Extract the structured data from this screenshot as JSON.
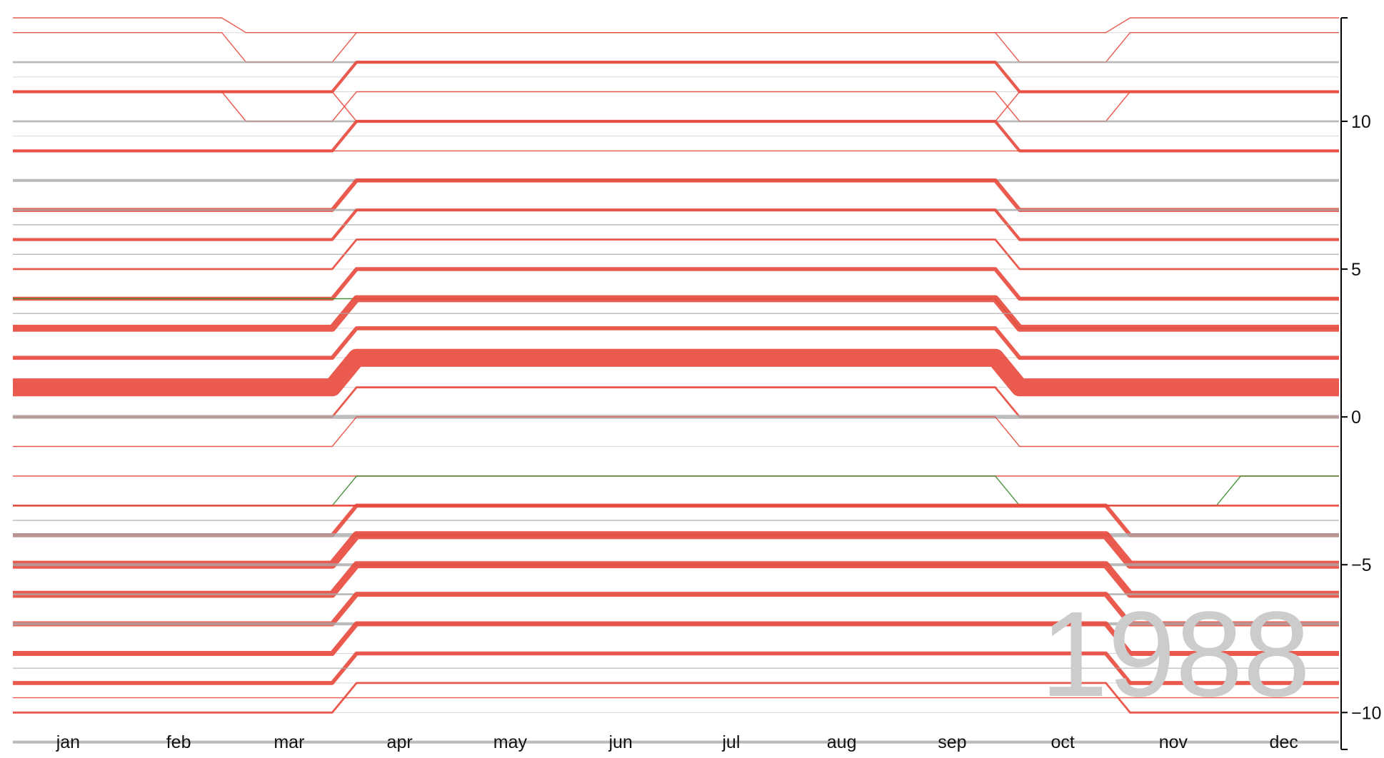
{
  "chart_data": {
    "type": "line",
    "title": "",
    "xlabel": "",
    "ylabel": "",
    "year_label": "1988",
    "x_categories": [
      "jan",
      "feb",
      "mar",
      "apr",
      "may",
      "jun",
      "jul",
      "aug",
      "sep",
      "oct",
      "nov",
      "dec"
    ],
    "y_ticks": [
      10,
      5,
      0,
      -5,
      -10
    ],
    "y_tick_labels": [
      "10",
      "5",
      "0",
      "−5",
      "−10"
    ],
    "ylim": [
      -11.2,
      13.5
    ],
    "grid": false,
    "legend": "none",
    "colors": {
      "dst": "#e8483b",
      "std": "#aaaaaa",
      "green": "#3a8a2e"
    },
    "offsets": [
      13,
      12,
      11.5,
      11,
      10,
      9.5,
      9,
      8,
      7,
      6.5,
      6,
      5.5,
      5,
      4,
      3.5,
      3,
      2,
      1,
      0,
      -1,
      -2,
      -3,
      -3.5,
      -4,
      -5,
      -6,
      -7,
      -8,
      -9,
      -10,
      -11
    ],
    "series": [
      {
        "values": [
          13.5,
          13.5,
          13,
          13,
          13,
          13,
          13,
          13,
          13,
          13,
          13.5,
          13.5
        ],
        "color": "dst",
        "weight": 1
      },
      {
        "values": [
          13,
          13,
          12,
          13,
          13,
          13,
          13,
          13,
          13,
          12,
          13,
          13
        ],
        "color": "dst",
        "weight": 1
      },
      {
        "values": [
          12,
          12,
          12,
          12,
          12,
          12,
          12,
          12,
          12,
          12,
          12,
          12
        ],
        "color": "std",
        "weight": 2
      },
      {
        "values": [
          11,
          11,
          11,
          12,
          12,
          12,
          12,
          12,
          12,
          11,
          11,
          11
        ],
        "color": "dst",
        "weight": 3
      },
      {
        "values": [
          11,
          11,
          10,
          11,
          11,
          11,
          11,
          11,
          11,
          10,
          11,
          11
        ],
        "color": "dst",
        "weight": 1
      },
      {
        "values": [
          11,
          11,
          11,
          10,
          10,
          10,
          10,
          10,
          10,
          11,
          11,
          11
        ],
        "color": "dst",
        "weight": 1
      },
      {
        "values": [
          10,
          10,
          10,
          10,
          10,
          10,
          10,
          10,
          10,
          10,
          10,
          10
        ],
        "color": "std",
        "weight": 2
      },
      {
        "values": [
          9,
          9,
          9,
          10,
          10,
          10,
          10,
          10,
          10,
          9,
          9,
          9
        ],
        "color": "dst",
        "weight": 3
      },
      {
        "values": [
          9,
          9,
          9,
          9,
          9,
          9,
          9,
          9,
          9,
          9,
          9,
          9
        ],
        "color": "dst",
        "weight": 1
      },
      {
        "values": [
          8,
          8,
          8,
          8,
          8,
          8,
          8,
          8,
          8,
          8,
          8,
          8
        ],
        "color": "std",
        "weight": 3
      },
      {
        "values": [
          7,
          7,
          7,
          8,
          8,
          8,
          8,
          8,
          8,
          7,
          7,
          7
        ],
        "color": "dst",
        "weight": 4
      },
      {
        "values": [
          7,
          7,
          7,
          7,
          7,
          7,
          7,
          7,
          7,
          7,
          7,
          7
        ],
        "color": "std",
        "weight": 2
      },
      {
        "values": [
          6,
          6,
          6,
          7,
          7,
          7,
          7,
          7,
          7,
          6,
          6,
          6
        ],
        "color": "dst",
        "weight": 3
      },
      {
        "values": [
          6.5,
          6.5,
          6.5,
          6.5,
          6.5,
          6.5,
          6.5,
          6.5,
          6.5,
          6.5,
          6.5,
          6.5
        ],
        "color": "std",
        "weight": 1
      },
      {
        "values": [
          5,
          5,
          5,
          6,
          6,
          6,
          6,
          6,
          6,
          5,
          5,
          5
        ],
        "color": "dst",
        "weight": 2
      },
      {
        "values": [
          5.5,
          5.5,
          5.5,
          5.5,
          5.5,
          5.5,
          5.5,
          5.5,
          5.5,
          5.5,
          5.5,
          5.5
        ],
        "color": "std",
        "weight": 1
      },
      {
        "values": [
          4,
          4,
          4,
          5,
          5,
          5,
          5,
          5,
          5,
          4,
          4,
          4
        ],
        "color": "dst",
        "weight": 4
      },
      {
        "values": [
          4,
          4,
          4,
          4,
          4,
          4,
          4,
          4,
          4,
          3,
          3,
          3
        ],
        "color": "green",
        "weight": 1
      },
      {
        "values": [
          3,
          3,
          3,
          4,
          4,
          4,
          4,
          4,
          4,
          3,
          3,
          3
        ],
        "color": "dst",
        "weight": 7
      },
      {
        "values": [
          3.5,
          3.5,
          3.5,
          3.5,
          3.5,
          3.5,
          3.5,
          3.5,
          3.5,
          3.5,
          3.5,
          3.5
        ],
        "color": "std",
        "weight": 1
      },
      {
        "values": [
          2,
          2,
          2,
          3,
          3,
          3,
          3,
          3,
          3,
          2,
          2,
          2
        ],
        "color": "dst",
        "weight": 4
      },
      {
        "values": [
          1,
          1,
          1,
          2,
          2,
          2,
          2,
          2,
          2,
          1,
          1,
          1
        ],
        "color": "dst",
        "weight": 18
      },
      {
        "values": [
          0,
          0,
          0,
          1,
          1,
          1,
          1,
          1,
          1,
          0,
          0,
          0
        ],
        "color": "dst",
        "weight": 2
      },
      {
        "values": [
          0,
          0,
          0,
          0,
          0,
          0,
          0,
          0,
          0,
          0,
          0,
          0
        ],
        "color": "std",
        "weight": 4
      },
      {
        "values": [
          -1,
          -1,
          -1,
          0,
          0,
          0,
          0,
          0,
          0,
          -1,
          -1,
          -1
        ],
        "color": "dst",
        "weight": 1
      },
      {
        "values": [
          -2,
          -2,
          -2,
          -2,
          -2,
          -2,
          -2,
          -2,
          -2,
          -2,
          -2,
          -2
        ],
        "color": "dst",
        "weight": 1
      },
      {
        "values": [
          -3,
          -3,
          -3,
          -2,
          -2,
          -2,
          -2,
          -2,
          -2,
          -3,
          -3,
          -2
        ],
        "color": "green",
        "weight": 1
      },
      {
        "values": [
          -3,
          -3,
          -3,
          -3,
          -3,
          -3,
          -3,
          -3,
          -3,
          -3,
          -3,
          -3
        ],
        "color": "dst",
        "weight": 2
      },
      {
        "values": [
          -3.5,
          -3.5,
          -3.5,
          -3.5,
          -3.5,
          -3.5,
          -3.5,
          -3.5,
          -3.5,
          -3.5,
          -3.5,
          -3.5
        ],
        "color": "std",
        "weight": 1
      },
      {
        "values": [
          -4,
          -4,
          -4,
          -3,
          -3,
          -3,
          -3,
          -3,
          -3,
          -3,
          -4,
          -4
        ],
        "color": "dst",
        "weight": 4
      },
      {
        "values": [
          -4,
          -4,
          -4,
          -4,
          -4,
          -4,
          -4,
          -4,
          -4,
          -4,
          -4,
          -4
        ],
        "color": "std",
        "weight": 4
      },
      {
        "values": [
          -5,
          -5,
          -5,
          -4,
          -4,
          -4,
          -4,
          -4,
          -4,
          -4,
          -5,
          -5
        ],
        "color": "dst",
        "weight": 8
      },
      {
        "values": [
          -5,
          -5,
          -5,
          -5,
          -5,
          -5,
          -5,
          -5,
          -5,
          -5,
          -5,
          -5
        ],
        "color": "std",
        "weight": 3
      },
      {
        "values": [
          -6,
          -6,
          -6,
          -5,
          -5,
          -5,
          -5,
          -5,
          -5,
          -5,
          -6,
          -6
        ],
        "color": "dst",
        "weight": 7
      },
      {
        "values": [
          -6,
          -6,
          -6,
          -6,
          -6,
          -6,
          -6,
          -6,
          -6,
          -6,
          -6,
          -6
        ],
        "color": "std",
        "weight": 2
      },
      {
        "values": [
          -7,
          -7,
          -7,
          -6,
          -6,
          -6,
          -6,
          -6,
          -6,
          -6,
          -7,
          -7
        ],
        "color": "dst",
        "weight": 5
      },
      {
        "values": [
          -7,
          -7,
          -7,
          -7,
          -7,
          -7,
          -7,
          -7,
          -7,
          -7,
          -7,
          -7
        ],
        "color": "std",
        "weight": 3
      },
      {
        "values": [
          -8,
          -8,
          -8,
          -7,
          -7,
          -7,
          -7,
          -7,
          -7,
          -7,
          -8,
          -8
        ],
        "color": "dst",
        "weight": 5
      },
      {
        "values": [
          -9,
          -9,
          -9,
          -8,
          -8,
          -8,
          -8,
          -8,
          -8,
          -8,
          -9,
          -9
        ],
        "color": "dst",
        "weight": 4
      },
      {
        "values": [
          -8.5,
          -8.5,
          -8.5,
          -8.5,
          -8.5,
          -8.5,
          -8.5,
          -8.5,
          -8.5,
          -8.5,
          -8.5,
          -8.5
        ],
        "color": "std",
        "weight": 1
      },
      {
        "values": [
          -10,
          -10,
          -10,
          -9,
          -9,
          -9,
          -9,
          -9,
          -9,
          -9,
          -10,
          -10
        ],
        "color": "dst",
        "weight": 2
      },
      {
        "values": [
          -9.5,
          -9.5,
          -9.5,
          -9.5,
          -9.5,
          -9.5,
          -9.5,
          -9.5,
          -9.5,
          -9.5,
          -9.5,
          -9.5
        ],
        "color": "dst",
        "weight": 1
      },
      {
        "values": [
          -11,
          -11,
          -11,
          -11,
          -11,
          -11,
          -11,
          -11,
          -11,
          -11,
          -11,
          -11
        ],
        "color": "std",
        "weight": 3
      }
    ]
  }
}
